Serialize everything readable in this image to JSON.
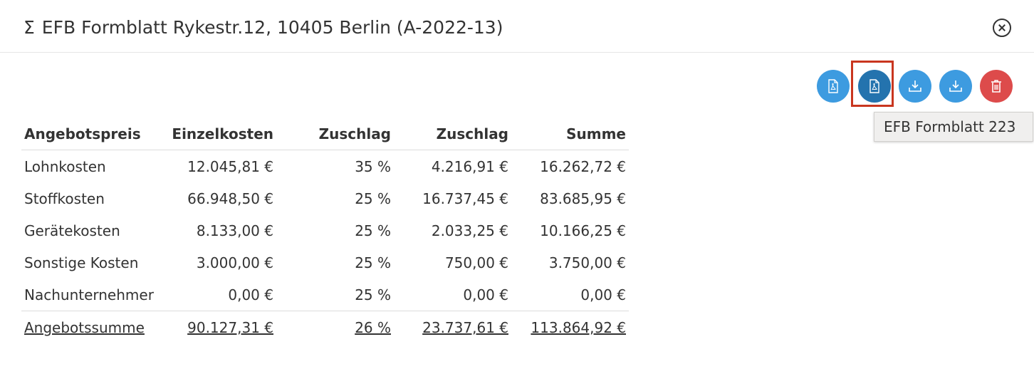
{
  "dialog": {
    "sigma": "Σ",
    "title": "EFB Formblatt Rykestr.12, 10405 Berlin (A-2022-13)"
  },
  "toolbar": {
    "buttons": [
      {
        "icon": "pdf-icon",
        "color": "#3d9be0"
      },
      {
        "icon": "pdf-icon",
        "color": "#2473ae",
        "active": true
      },
      {
        "icon": "download-icon",
        "color": "#3d9be0"
      },
      {
        "icon": "download-icon",
        "color": "#3d9be0"
      },
      {
        "icon": "trash-icon",
        "color": "#dd4b4b"
      }
    ],
    "tooltip": "EFB Formblatt 223"
  },
  "table": {
    "headers": [
      "Angebotspreis",
      "Einzelkosten",
      "Zuschlag",
      "Zuschlag",
      "Summe"
    ],
    "rows": [
      [
        "Lohnkosten",
        "12.045,81 €",
        "35 %",
        "4.216,91 €",
        "16.262,72 €"
      ],
      [
        "Stoffkosten",
        "66.948,50 €",
        "25 %",
        "16.737,45 €",
        "83.685,95 €"
      ],
      [
        "Gerätekosten",
        "8.133,00 €",
        "25 %",
        "2.033,25 €",
        "10.166,25 €"
      ],
      [
        "Sonstige Kosten",
        "3.000,00 €",
        "25 %",
        "750,00 €",
        "3.750,00 €"
      ],
      [
        "Nachunternehmer",
        "0,00 €",
        "25 %",
        "0,00 €",
        "0,00 €"
      ]
    ],
    "total": [
      "Angebotssumme",
      "90.127,31 €",
      "26 %",
      "23.737,61 €",
      "113.864,92 €"
    ]
  }
}
